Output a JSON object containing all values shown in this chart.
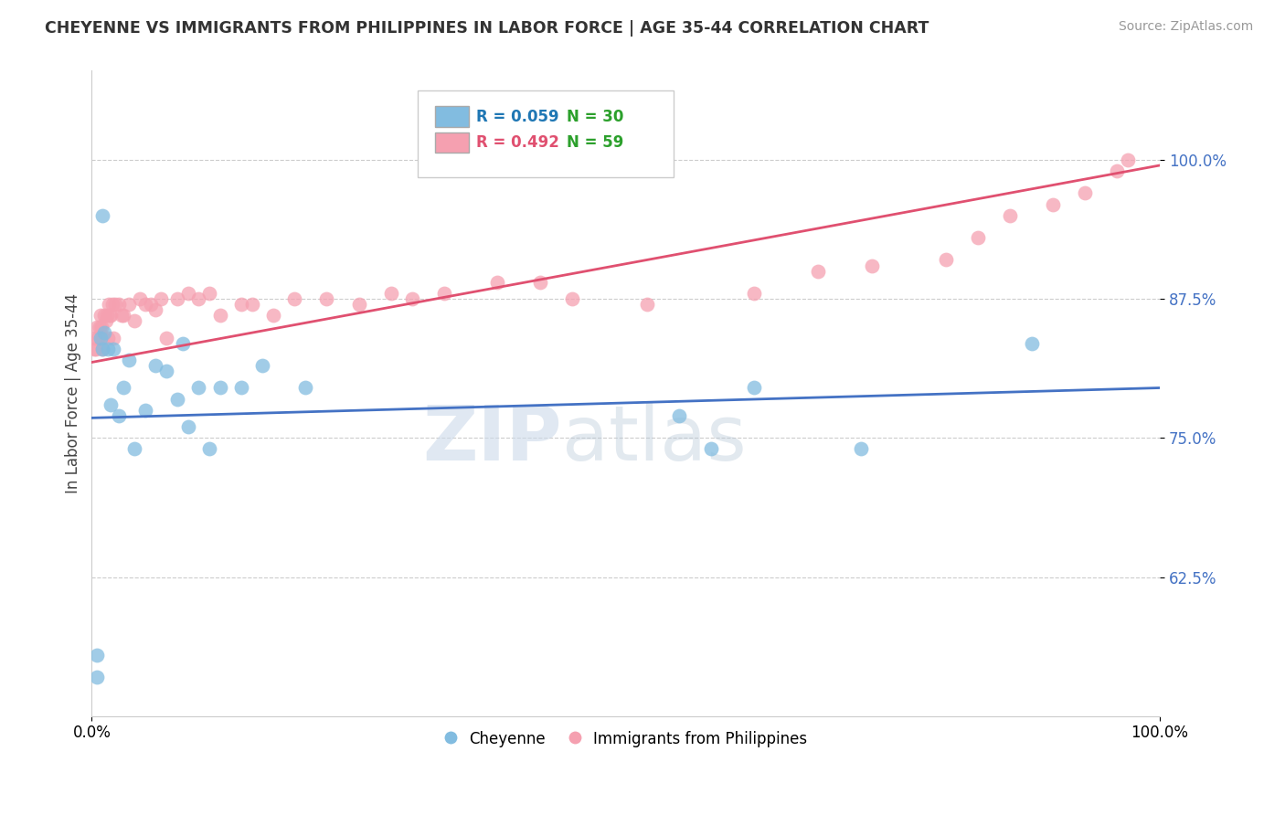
{
  "title": "CHEYENNE VS IMMIGRANTS FROM PHILIPPINES IN LABOR FORCE | AGE 35-44 CORRELATION CHART",
  "source": "Source: ZipAtlas.com",
  "ylabel": "In Labor Force | Age 35-44",
  "ytick_labels": [
    "62.5%",
    "75.0%",
    "87.5%",
    "100.0%"
  ],
  "ytick_values": [
    0.625,
    0.75,
    0.875,
    1.0
  ],
  "xlim": [
    0.0,
    1.0
  ],
  "ylim": [
    0.5,
    1.08
  ],
  "legend_blue_r": "R = 0.059",
  "legend_blue_n": "N = 30",
  "legend_pink_r": "R = 0.492",
  "legend_pink_n": "N = 59",
  "watermark_zip": "ZIP",
  "watermark_atlas": "atlas",
  "blue_scatter_color": "#82bce0",
  "pink_scatter_color": "#f5a0b0",
  "blue_line_color": "#4472c4",
  "pink_line_color": "#e05070",
  "blue_r_color": "#1f77b4",
  "pink_r_color": "#e05070",
  "n_color": "#2ca02c",
  "cheyenne_x": [
    0.005,
    0.005,
    0.008,
    0.01,
    0.01,
    0.012,
    0.015,
    0.018,
    0.02,
    0.025,
    0.03,
    0.035,
    0.04,
    0.05,
    0.06,
    0.07,
    0.08,
    0.085,
    0.09,
    0.1,
    0.11,
    0.12,
    0.14,
    0.16,
    0.2,
    0.55,
    0.58,
    0.62,
    0.72,
    0.88
  ],
  "cheyenne_y": [
    0.535,
    0.555,
    0.84,
    0.83,
    0.95,
    0.845,
    0.83,
    0.78,
    0.83,
    0.77,
    0.795,
    0.82,
    0.74,
    0.775,
    0.815,
    0.81,
    0.785,
    0.835,
    0.76,
    0.795,
    0.74,
    0.795,
    0.795,
    0.815,
    0.795,
    0.77,
    0.74,
    0.795,
    0.74,
    0.835
  ],
  "philippines_x": [
    0.002,
    0.003,
    0.004,
    0.005,
    0.006,
    0.007,
    0.008,
    0.009,
    0.01,
    0.01,
    0.012,
    0.013,
    0.014,
    0.015,
    0.016,
    0.017,
    0.018,
    0.019,
    0.02,
    0.022,
    0.025,
    0.028,
    0.03,
    0.035,
    0.04,
    0.045,
    0.05,
    0.055,
    0.06,
    0.065,
    0.07,
    0.08,
    0.09,
    0.1,
    0.11,
    0.12,
    0.14,
    0.15,
    0.17,
    0.19,
    0.22,
    0.25,
    0.28,
    0.3,
    0.33,
    0.38,
    0.42,
    0.45,
    0.52,
    0.62,
    0.68,
    0.73,
    0.8,
    0.83,
    0.86,
    0.9,
    0.93,
    0.96,
    0.97
  ],
  "philippines_y": [
    0.83,
    0.84,
    0.83,
    0.85,
    0.84,
    0.85,
    0.86,
    0.85,
    0.83,
    0.84,
    0.86,
    0.855,
    0.86,
    0.84,
    0.87,
    0.86,
    0.86,
    0.87,
    0.84,
    0.87,
    0.87,
    0.86,
    0.86,
    0.87,
    0.855,
    0.875,
    0.87,
    0.87,
    0.865,
    0.875,
    0.84,
    0.875,
    0.88,
    0.875,
    0.88,
    0.86,
    0.87,
    0.87,
    0.86,
    0.875,
    0.875,
    0.87,
    0.88,
    0.875,
    0.88,
    0.89,
    0.89,
    0.875,
    0.87,
    0.88,
    0.9,
    0.905,
    0.91,
    0.93,
    0.95,
    0.96,
    0.97,
    0.99,
    1.0
  ],
  "blue_trend": [
    0.0,
    1.0,
    0.768,
    0.795
  ],
  "pink_trend": [
    0.0,
    1.0,
    0.818,
    0.995
  ]
}
